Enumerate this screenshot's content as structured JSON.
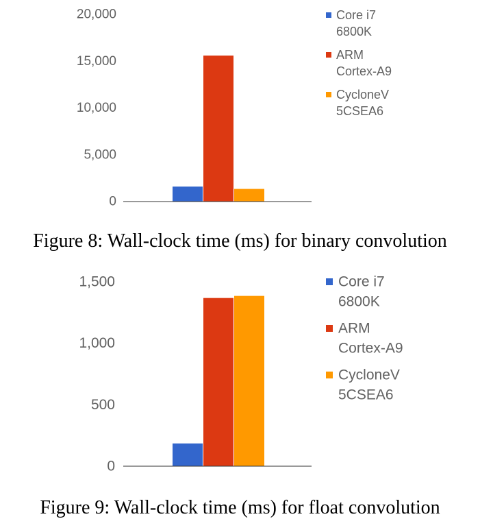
{
  "colors": {
    "core_i7": "#3366cc",
    "arm": "#dc3912",
    "cyclone": "#ff9900",
    "axis": "#616161",
    "baseline": "#333333"
  },
  "captions": {
    "fig8": "Figure 8: Wall-clock time (ms) for binary convolution",
    "fig9": "Figure 9: Wall-clock time (ms) for float convolution"
  },
  "chart_data": [
    {
      "type": "bar",
      "title": "",
      "xlabel": "",
      "ylabel": "",
      "ylim": [
        0,
        20000
      ],
      "y_ticks": [
        0,
        5000,
        10000,
        15000,
        20000
      ],
      "y_tick_labels": [
        "0",
        "5,000",
        "10,000",
        "15,000",
        "20,000"
      ],
      "grid": false,
      "legend_position": "right",
      "series": [
        {
          "name": "Core i7 6800K",
          "legend_lines": [
            "Core i7",
            "6800K"
          ],
          "color": "#3366cc",
          "value": 1600
        },
        {
          "name": "ARM Cortex-A9",
          "legend_lines": [
            "ARM",
            "Cortex-A9"
          ],
          "color": "#dc3912",
          "value": 15600
        },
        {
          "name": "CycloneV 5CSEA6",
          "legend_lines": [
            "CycloneV",
            "5CSEA6"
          ],
          "color": "#ff9900",
          "value": 1350
        }
      ]
    },
    {
      "type": "bar",
      "title": "",
      "xlabel": "",
      "ylabel": "",
      "ylim": [
        0,
        1500
      ],
      "y_ticks": [
        0,
        500,
        1000,
        1500
      ],
      "y_tick_labels": [
        "0",
        "500",
        "1,000",
        "1,500"
      ],
      "grid": false,
      "legend_position": "right",
      "series": [
        {
          "name": "Core i7 6800K",
          "legend_lines": [
            "Core i7",
            "6800K"
          ],
          "color": "#3366cc",
          "value": 185
        },
        {
          "name": "ARM Cortex-A9",
          "legend_lines": [
            "ARM",
            "Cortex-A9"
          ],
          "color": "#dc3912",
          "value": 1368
        },
        {
          "name": "CycloneV 5CSEA6",
          "legend_lines": [
            "CycloneV",
            "5CSEA6"
          ],
          "color": "#ff9900",
          "value": 1385
        }
      ]
    }
  ]
}
